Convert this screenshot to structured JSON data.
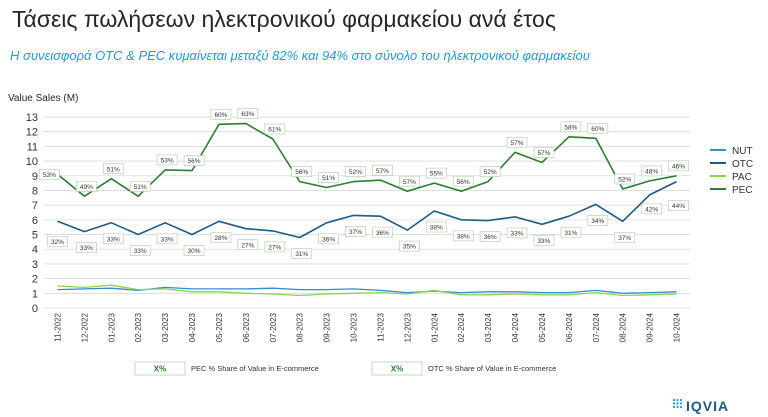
{
  "page": {
    "title": "Τάσεις πωλήσεων ηλεκτρονικού φαρμακείου ανά έτος",
    "subtitle": "Η συνεισφορά OTC & PEC κυμαίνεται μεταξύ 82% και 94% στο σύνολο του ηλεκτρονικού  φαρμακείου",
    "brand": "IQVIA"
  },
  "colors": {
    "NUT": "#2e8fd1",
    "OTC": "#1f5a85",
    "PAC": "#8fd14f",
    "PEC": "#2e7d32",
    "grid": "#d9d9d9",
    "label_border": "#b7d3b0"
  },
  "chart_data": {
    "type": "line",
    "ylabel": "Value Sales (M)",
    "ylim": [
      0,
      13
    ],
    "yticks": [
      0,
      1,
      2,
      3,
      4,
      5,
      6,
      7,
      8,
      9,
      10,
      11,
      12,
      13
    ],
    "grid": true,
    "legend_position": "right",
    "categories": [
      "11-2022",
      "12-2022",
      "01-2023",
      "02-2023",
      "03-2023",
      "04-2023",
      "05-2023",
      "06-2023",
      "07-2023",
      "08-2023",
      "09-2023",
      "10-2023",
      "11-2023",
      "12-2023",
      "01-2024",
      "02-2024",
      "03-2024",
      "04-2024",
      "05-2024",
      "06-2024",
      "07-2024",
      "08-2024",
      "09-2024",
      "10-2024"
    ],
    "series": [
      {
        "name": "NUT",
        "values": [
          1.25,
          1.3,
          1.35,
          1.2,
          1.4,
          1.3,
          1.3,
          1.3,
          1.35,
          1.25,
          1.25,
          1.3,
          1.2,
          1.05,
          1.15,
          1.05,
          1.1,
          1.1,
          1.05,
          1.05,
          1.2,
          1.0,
          1.05,
          1.1
        ]
      },
      {
        "name": "OTC",
        "values": [
          5.9,
          5.2,
          5.8,
          5.0,
          5.8,
          5.0,
          5.9,
          5.4,
          5.25,
          4.8,
          5.8,
          6.3,
          6.25,
          5.3,
          6.6,
          6.0,
          5.95,
          6.2,
          5.7,
          6.25,
          7.05,
          5.9,
          7.7,
          8.6
        ]
      },
      {
        "name": "PAC",
        "values": [
          1.5,
          1.4,
          1.55,
          1.25,
          1.3,
          1.1,
          1.1,
          1.0,
          0.95,
          0.85,
          0.95,
          1.0,
          1.05,
          0.95,
          1.2,
          0.9,
          0.9,
          0.95,
          0.9,
          0.9,
          1.05,
          0.85,
          0.9,
          0.95
        ]
      },
      {
        "name": "PEC",
        "values": [
          9.1,
          7.6,
          8.8,
          7.6,
          9.4,
          9.35,
          12.5,
          12.55,
          11.5,
          8.6,
          8.2,
          8.6,
          8.7,
          7.95,
          8.5,
          7.95,
          8.6,
          10.6,
          9.9,
          11.65,
          11.55,
          8.1,
          8.65,
          9.0
        ]
      }
    ],
    "pec_share_labels": [
      "53%",
      "49%",
      "51%",
      "51%",
      "53%",
      "56%",
      "60%",
      "63%",
      "61%",
      "56%",
      "51%",
      "52%",
      "57%",
      "57%",
      "55%",
      "56%",
      "52%",
      "57%",
      "57%",
      "58%",
      "60%",
      "52%",
      "48%",
      "46%"
    ],
    "otc_share_labels": [
      "32%",
      "33%",
      "33%",
      "33%",
      "33%",
      "30%",
      "28%",
      "27%",
      "27%",
      "31%",
      "36%",
      "37%",
      "36%",
      "35%",
      "38%",
      "38%",
      "36%",
      "33%",
      "33%",
      "31%",
      "34%",
      "37%",
      "42%",
      "44%"
    ],
    "label_legend": [
      {
        "marker": "X%",
        "text": "PEC % Share of Value in E-commerce"
      },
      {
        "marker": "X%",
        "text": "OTC % Share of Value in E-commerce"
      }
    ]
  }
}
